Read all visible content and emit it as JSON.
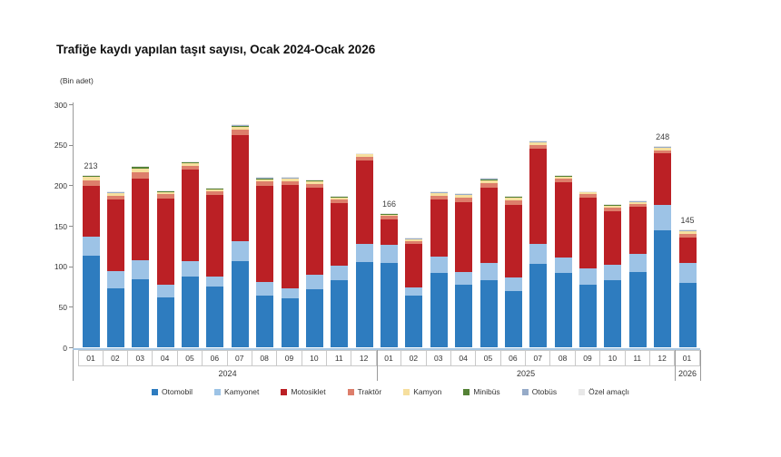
{
  "header": {
    "title": "Trafiğe kaydı yapılan taşıt sayısı, Ocak 2024-Ocak 2026",
    "unit_label": "(Bin adet)"
  },
  "chart_data": {
    "type": "bar",
    "subtype": "stacked-vertical",
    "title": "Trafiğe kaydı yapılan taşıt sayısı, Ocak 2024-Ocak 2026",
    "ylabel": "(Bin adet)",
    "ylim": [
      0,
      300
    ],
    "yticks": [
      0,
      50,
      100,
      150,
      200,
      250,
      300
    ],
    "grid": false,
    "legend_position": "bottom",
    "groups": [
      {
        "year": "2024",
        "months": [
          "01",
          "02",
          "03",
          "04",
          "05",
          "06",
          "07",
          "08",
          "09",
          "10",
          "11",
          "12"
        ]
      },
      {
        "year": "2025",
        "months": [
          "01",
          "02",
          "03",
          "04",
          "05",
          "06",
          "07",
          "08",
          "09",
          "10",
          "11",
          "12"
        ]
      },
      {
        "year": "2026",
        "months": [
          "01"
        ]
      }
    ],
    "series": [
      {
        "name": "Otomobil",
        "color": "#2e7cbf",
        "values": [
          113,
          73,
          84,
          62,
          87,
          75,
          106,
          64,
          60,
          72,
          83,
          105,
          104,
          64,
          92,
          77,
          83,
          69,
          103,
          92,
          77,
          83,
          93,
          144,
          79
        ]
      },
      {
        "name": "Kamyonet",
        "color": "#9dc3e6",
        "values": [
          24,
          21,
          23,
          15,
          19,
          12,
          25,
          17,
          13,
          18,
          18,
          23,
          23,
          10,
          20,
          16,
          21,
          17,
          25,
          19,
          20,
          19,
          22,
          32,
          25
        ]
      },
      {
        "name": "Motosiklet",
        "color": "#bb2025",
        "values": [
          62,
          88,
          101,
          107,
          113,
          101,
          131,
          118,
          127,
          107,
          77,
          103,
          31,
          54,
          71,
          86,
          93,
          90,
          117,
          93,
          88,
          66,
          58,
          63,
          31
        ]
      },
      {
        "name": "Traktör",
        "color": "#dd7e6b",
        "values": [
          6.7,
          4.8,
          7.7,
          4.8,
          5.3,
          4.3,
          6.2,
          5.3,
          4.8,
          4.8,
          4.3,
          4.3,
          3.8,
          3.4,
          4.3,
          5.3,
          5.8,
          5.3,
          4.8,
          4.3,
          3.8,
          4.3,
          3.8,
          4.3,
          4.8
        ]
      },
      {
        "name": "Kamyon",
        "color": "#f6df9e",
        "values": [
          4.2,
          3.0,
          4.8,
          3.0,
          3.3,
          2.7,
          3.9,
          3.3,
          3.0,
          3.0,
          2.7,
          2.7,
          2.4,
          2.1,
          2.7,
          3.3,
          3.6,
          3.3,
          3.0,
          2.7,
          2.4,
          2.7,
          2.4,
          2.7,
          3.0
        ]
      },
      {
        "name": "Minibüs",
        "color": "#548235",
        "values": [
          1.5,
          1.1,
          1.8,
          1.1,
          1.2,
          1.0,
          1.4,
          1.2,
          1.1,
          1.1,
          1.0,
          1.0,
          0.9,
          0.8,
          1.0,
          1.2,
          1.3,
          1.2,
          1.1,
          1.0,
          0.9,
          1.0,
          0.9,
          1.0,
          1.1
        ]
      },
      {
        "name": "Otobüs",
        "color": "#96abc8",
        "values": [
          1.0,
          0.7,
          1.1,
          0.7,
          0.8,
          0.6,
          0.9,
          0.8,
          0.7,
          0.7,
          0.6,
          0.6,
          0.6,
          0.5,
          0.6,
          0.8,
          0.8,
          0.8,
          0.7,
          0.6,
          0.6,
          0.6,
          0.6,
          0.6,
          0.7
        ]
      },
      {
        "name": "Özel amaçlı",
        "color": "#e8e8e8",
        "values": [
          0.6,
          0.4,
          0.6,
          0.4,
          0.4,
          0.4,
          0.6,
          0.4,
          0.4,
          0.4,
          0.4,
          0.4,
          0.3,
          0.2,
          0.4,
          0.4,
          0.5,
          0.4,
          0.4,
          0.4,
          0.3,
          0.4,
          0.3,
          0.4,
          0.4
        ]
      }
    ],
    "bar_labels": [
      {
        "index": 0,
        "text": "213"
      },
      {
        "index": 12,
        "text": "166"
      },
      {
        "index": 23,
        "text": "248"
      },
      {
        "index": 24,
        "text": "145"
      }
    ],
    "legend": [
      "Otomobil",
      "Kamyonet",
      "Motosiklet",
      "Traktör",
      "Kamyon",
      "Minibüs",
      "Otobüs",
      "Özel amaçlı"
    ]
  }
}
